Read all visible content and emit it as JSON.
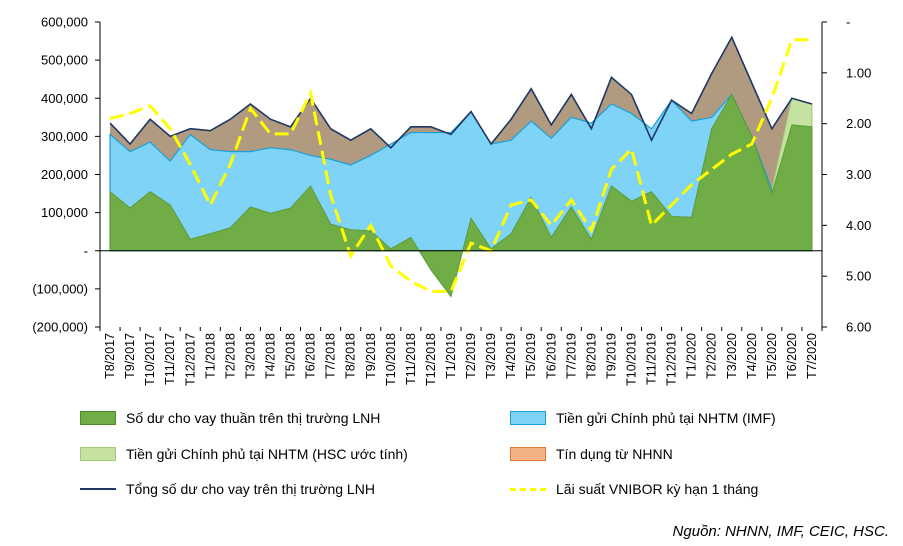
{
  "chart_data": {
    "type": "area",
    "categories": [
      "T8/2017",
      "T9/2017",
      "T10/2017",
      "T11/2017",
      "T12/2017",
      "T1/2018",
      "T2/2018",
      "T3/2018",
      "T4/2018",
      "T5/2018",
      "T6/2018",
      "T7/2018",
      "T8/2018",
      "T9/2018",
      "T10/2018",
      "T11/2018",
      "T12/2018",
      "T1/2019",
      "T2/2019",
      "T3/2019",
      "T4/2019",
      "T5/2019",
      "T6/2019",
      "T7/2019",
      "T8/2019",
      "T9/2019",
      "T10/2019",
      "T11/2019",
      "T12/2019",
      "T1/2020",
      "T2/2020",
      "T3/2020",
      "T4/2020",
      "T5/2020",
      "T6/2020",
      "T7/2020"
    ],
    "y_left": {
      "ylim": [
        -200000,
        600000
      ],
      "ticks": [
        -200000,
        -100000,
        0,
        100000,
        200000,
        300000,
        400000,
        500000,
        600000
      ],
      "tick_labels": [
        "(200,000)",
        "(100,000)",
        "-",
        "100,000",
        "200,000",
        "300,000",
        "400,000",
        "500,000",
        "600,000"
      ]
    },
    "y_right": {
      "ylim": [
        6.0,
        0.0
      ],
      "inverted": true,
      "ticks": [
        0,
        1,
        2,
        3,
        4,
        5,
        6
      ],
      "tick_labels": [
        "-",
        "1.00",
        "2.00",
        "3.00",
        "4.00",
        "5.00",
        "6.00"
      ]
    },
    "series": [
      {
        "name": "Số dư cho vay thuần trên thị trường LNH",
        "kind": "area",
        "axis": "left",
        "color": "#70ad47",
        "values": [
          155000,
          112000,
          155000,
          120000,
          30000,
          45000,
          60000,
          115000,
          98000,
          112000,
          170000,
          70000,
          55000,
          52000,
          5000,
          35000,
          -50000,
          -120000,
          85000,
          5000,
          45000,
          140000,
          35000,
          115000,
          30000,
          170000,
          130000,
          155000,
          90000,
          88000,
          320000,
          410000,
          300000,
          150000,
          330000,
          325000
        ]
      },
      {
        "name": "Tiền gửi Chính phủ tại NHTM (IMF)",
        "kind": "area",
        "axis": "left",
        "color": "#7fd3f7",
        "values": [
          305000,
          260000,
          285000,
          235000,
          305000,
          265000,
          260000,
          260000,
          270000,
          265000,
          250000,
          240000,
          225000,
          250000,
          280000,
          310000,
          310000,
          310000,
          365000,
          280000,
          290000,
          340000,
          295000,
          350000,
          335000,
          385000,
          360000,
          320000,
          395000,
          340000,
          350000,
          410000,
          300000,
          160000,
          0,
          0
        ]
      },
      {
        "name": "Tiền gửi Chính phủ tại NHTM (HSC ước tính)",
        "kind": "area",
        "axis": "left",
        "color": "#c6e2a0",
        "values": [
          0,
          0,
          0,
          0,
          0,
          0,
          0,
          0,
          0,
          0,
          0,
          0,
          0,
          0,
          0,
          0,
          0,
          0,
          0,
          0,
          0,
          0,
          0,
          0,
          0,
          0,
          0,
          0,
          0,
          0,
          0,
          0,
          0,
          160000,
          400000,
          385000
        ]
      },
      {
        "name": "Tín dụng từ NHNN",
        "kind": "area",
        "axis": "left",
        "color": "#f4b183",
        "values": [
          0,
          0,
          0,
          0,
          0,
          0,
          0,
          0,
          0,
          0,
          0,
          0,
          0,
          0,
          0,
          0,
          250000,
          165000,
          0,
          0,
          0,
          0,
          0,
          0,
          0,
          0,
          0,
          265000,
          0,
          0,
          0,
          0,
          0,
          0,
          0,
          0
        ]
      },
      {
        "name": "Tổng số dư cho vay trên thị trường LNH",
        "kind": "line",
        "axis": "left",
        "color": "#1f3864",
        "values": [
          335000,
          280000,
          345000,
          300000,
          320000,
          315000,
          345000,
          385000,
          345000,
          325000,
          400000,
          320000,
          290000,
          320000,
          270000,
          325000,
          325000,
          305000,
          365000,
          280000,
          345000,
          425000,
          330000,
          410000,
          320000,
          455000,
          410000,
          290000,
          395000,
          360000,
          465000,
          560000,
          440000,
          320000,
          400000,
          385000
        ]
      },
      {
        "name": "Lãi suất VNIBOR kỳ hạn 1 tháng",
        "kind": "line",
        "axis": "right",
        "color": "#ffff00",
        "dashed": true,
        "values": [
          1.9,
          1.8,
          1.65,
          2.1,
          2.8,
          3.6,
          2.8,
          1.7,
          2.2,
          2.2,
          1.4,
          3.4,
          4.6,
          4.0,
          4.8,
          5.1,
          5.3,
          5.3,
          4.35,
          4.5,
          3.6,
          3.5,
          4.0,
          3.5,
          4.1,
          2.9,
          2.5,
          4.0,
          3.6,
          3.2,
          2.9,
          2.6,
          2.4,
          1.5,
          0.35,
          0.35
        ]
      }
    ],
    "legend_placement": "bottom",
    "grid": false,
    "source": "Nguồn: NHNN, IMF, CEIC, HSC."
  }
}
